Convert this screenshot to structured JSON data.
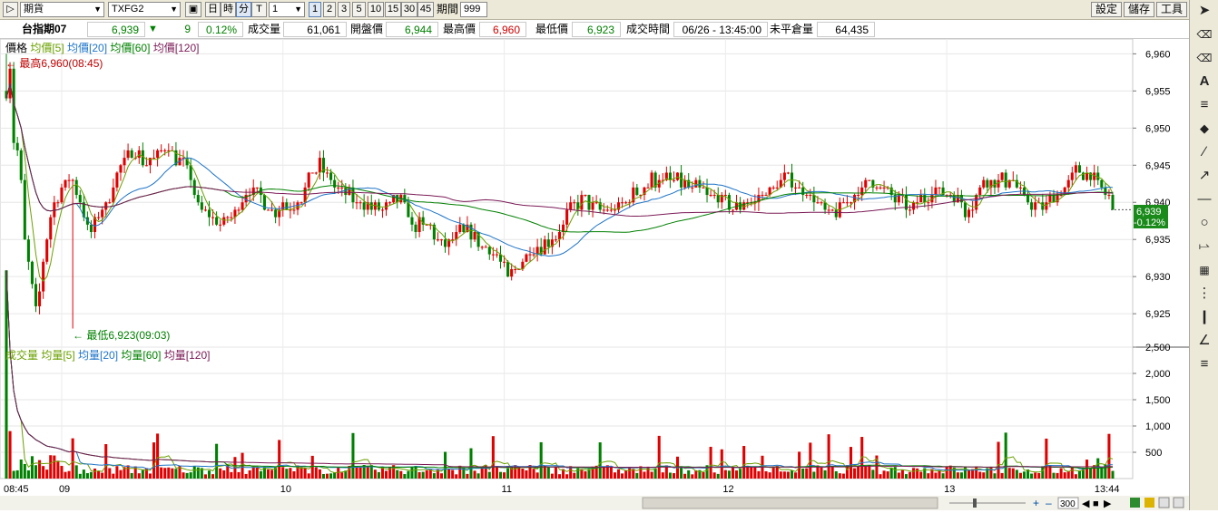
{
  "toolbar": {
    "market_select": "期貨",
    "symbol_select": "TXFG2",
    "period_buttons": [
      "日",
      "時",
      "分",
      "T"
    ],
    "interval_select": "1",
    "count_buttons": [
      "1",
      "2",
      "3",
      "5",
      "10",
      "15",
      "30",
      "45"
    ],
    "period_label": "期間",
    "period_value": "999",
    "settings_label": "設定",
    "save_label": "儲存",
    "tools_label": "工具"
  },
  "quote": {
    "name": "台指期07",
    "price": "6,939",
    "change": "9",
    "change_pct": "0.12%",
    "volume_label": "成交量",
    "volume": "61,061",
    "open_label": "開盤價",
    "open": "6,944",
    "high_label": "最高價",
    "high": "6,960",
    "low_label": "最低價",
    "low": "6,923",
    "time_label": "成交時間",
    "time": "06/26 - 13:45:00",
    "oi_label": "未平倉量",
    "oi": "64,435"
  },
  "price_legend": [
    {
      "text": "價格",
      "color": "#000000"
    },
    {
      "text": "均價[5]",
      "color": "#6aa000"
    },
    {
      "text": "均價[20]",
      "color": "#1e74c8"
    },
    {
      "text": "均價[60]",
      "color": "#008000"
    },
    {
      "text": "均價[120]",
      "color": "#7a1a55"
    }
  ],
  "volume_legend": [
    {
      "text": "成交量",
      "color": "#6aa000"
    },
    {
      "text": "均量[5]",
      "color": "#6aa000"
    },
    {
      "text": "均量[20]",
      "color": "#1e74c8"
    },
    {
      "text": "均量[60]",
      "color": "#008000"
    },
    {
      "text": "均量[120]",
      "color": "#7a1a55"
    }
  ],
  "annotations": {
    "high": "最高6,960(08:45)",
    "low": "最低6,923(09:03)"
  },
  "current_badge": {
    "price": "6,939",
    "pct": "0.12%"
  },
  "footer": {
    "zoom_value": "300"
  },
  "chart_data": {
    "type": "candlestick",
    "price_axis": {
      "ticks": [
        "6,960",
        "6,955",
        "6,950",
        "6,945",
        "6,940",
        "6,935",
        "6,930",
        "6,925"
      ],
      "ylim": [
        6920.5,
        6962
      ]
    },
    "volume_axis": {
      "ticks": [
        "2,500",
        "2,000",
        "1,500",
        "1,000",
        "500"
      ],
      "ylim": [
        0,
        2500
      ]
    },
    "x_ticks": [
      "08:45",
      "09",
      "10",
      "11",
      "12",
      "13",
      "13:44"
    ],
    "x_range": [
      "08:45",
      "13:45"
    ],
    "price_anchors": [
      [
        0,
        6955
      ],
      [
        2,
        6958
      ],
      [
        4,
        6948
      ],
      [
        7,
        6946
      ],
      [
        10,
        6935
      ],
      [
        13,
        6930
      ],
      [
        16,
        6925
      ],
      [
        18,
        6928
      ],
      [
        21,
        6934
      ],
      [
        25,
        6940
      ],
      [
        30,
        6942
      ],
      [
        35,
        6944
      ],
      [
        40,
        6940
      ],
      [
        45,
        6936
      ],
      [
        50,
        6938
      ],
      [
        55,
        6940
      ],
      [
        60,
        6944
      ],
      [
        65,
        6946
      ],
      [
        70,
        6947
      ],
      [
        75,
        6945
      ],
      [
        80,
        6946
      ],
      [
        85,
        6947
      ],
      [
        88,
        6948
      ],
      [
        92,
        6946
      ],
      [
        96,
        6945
      ],
      [
        100,
        6943
      ],
      [
        105,
        6939
      ],
      [
        110,
        6938
      ],
      [
        115,
        6937
      ],
      [
        120,
        6938
      ],
      [
        125,
        6939
      ],
      [
        130,
        6941
      ],
      [
        135,
        6942
      ],
      [
        140,
        6940
      ],
      [
        145,
        6938
      ],
      [
        150,
        6940
      ],
      [
        155,
        6939
      ],
      [
        160,
        6941
      ],
      [
        165,
        6944
      ],
      [
        170,
        6945
      ],
      [
        175,
        6943
      ],
      [
        180,
        6942
      ],
      [
        185,
        6941
      ],
      [
        190,
        6940
      ],
      [
        195,
        6940
      ],
      [
        200,
        6939
      ],
      [
        205,
        6939
      ],
      [
        210,
        6940
      ],
      [
        215,
        6940
      ],
      [
        220,
        6937
      ],
      [
        225,
        6937
      ],
      [
        230,
        6937
      ],
      [
        235,
        6934
      ],
      [
        240,
        6935
      ],
      [
        245,
        6936
      ],
      [
        250,
        6936
      ],
      [
        255,
        6935
      ],
      [
        260,
        6934
      ],
      [
        265,
        6933
      ],
      [
        268,
        6932
      ],
      [
        272,
        6930
      ],
      [
        276,
        6931
      ],
      [
        280,
        6932
      ],
      [
        285,
        6934
      ],
      [
        290,
        6934
      ],
      [
        295,
        6935
      ],
      [
        300,
        6936
      ],
      [
        305,
        6939
      ],
      [
        310,
        6940
      ],
      [
        315,
        6940
      ],
      [
        320,
        6939
      ],
      [
        325,
        6939
      ],
      [
        330,
        6939
      ],
      [
        335,
        6940
      ],
      [
        340,
        6941
      ],
      [
        345,
        6942
      ],
      [
        350,
        6943
      ],
      [
        355,
        6943
      ],
      [
        360,
        6943
      ],
      [
        365,
        6943
      ],
      [
        370,
        6942
      ],
      [
        375,
        6942
      ],
      [
        380,
        6941
      ],
      [
        385,
        6941
      ],
      [
        390,
        6940
      ],
      [
        395,
        6939
      ],
      [
        400,
        6940
      ],
      [
        405,
        6940
      ],
      [
        410,
        6941
      ],
      [
        415,
        6942
      ],
      [
        420,
        6943
      ],
      [
        425,
        6943
      ],
      [
        430,
        6942
      ],
      [
        435,
        6941
      ],
      [
        440,
        6940
      ],
      [
        445,
        6938
      ],
      [
        450,
        6939
      ],
      [
        455,
        6940
      ],
      [
        460,
        6941
      ],
      [
        465,
        6942
      ],
      [
        470,
        6943
      ],
      [
        475,
        6942
      ],
      [
        480,
        6941
      ],
      [
        485,
        6940
      ],
      [
        490,
        6939
      ],
      [
        495,
        6940
      ],
      [
        500,
        6941
      ],
      [
        505,
        6942
      ],
      [
        510,
        6941
      ],
      [
        515,
        6941
      ],
      [
        520,
        6939
      ],
      [
        525,
        6940
      ],
      [
        530,
        6943
      ],
      [
        535,
        6943
      ],
      [
        540,
        6943
      ],
      [
        545,
        6943
      ],
      [
        550,
        6941
      ],
      [
        555,
        6940
      ],
      [
        560,
        6939
      ],
      [
        565,
        6940
      ],
      [
        570,
        6941
      ],
      [
        575,
        6942
      ],
      [
        580,
        6944
      ],
      [
        585,
        6944
      ],
      [
        590,
        6943
      ],
      [
        595,
        6941
      ],
      [
        600,
        6940
      ],
      [
        601,
        6939
      ]
    ]
  }
}
